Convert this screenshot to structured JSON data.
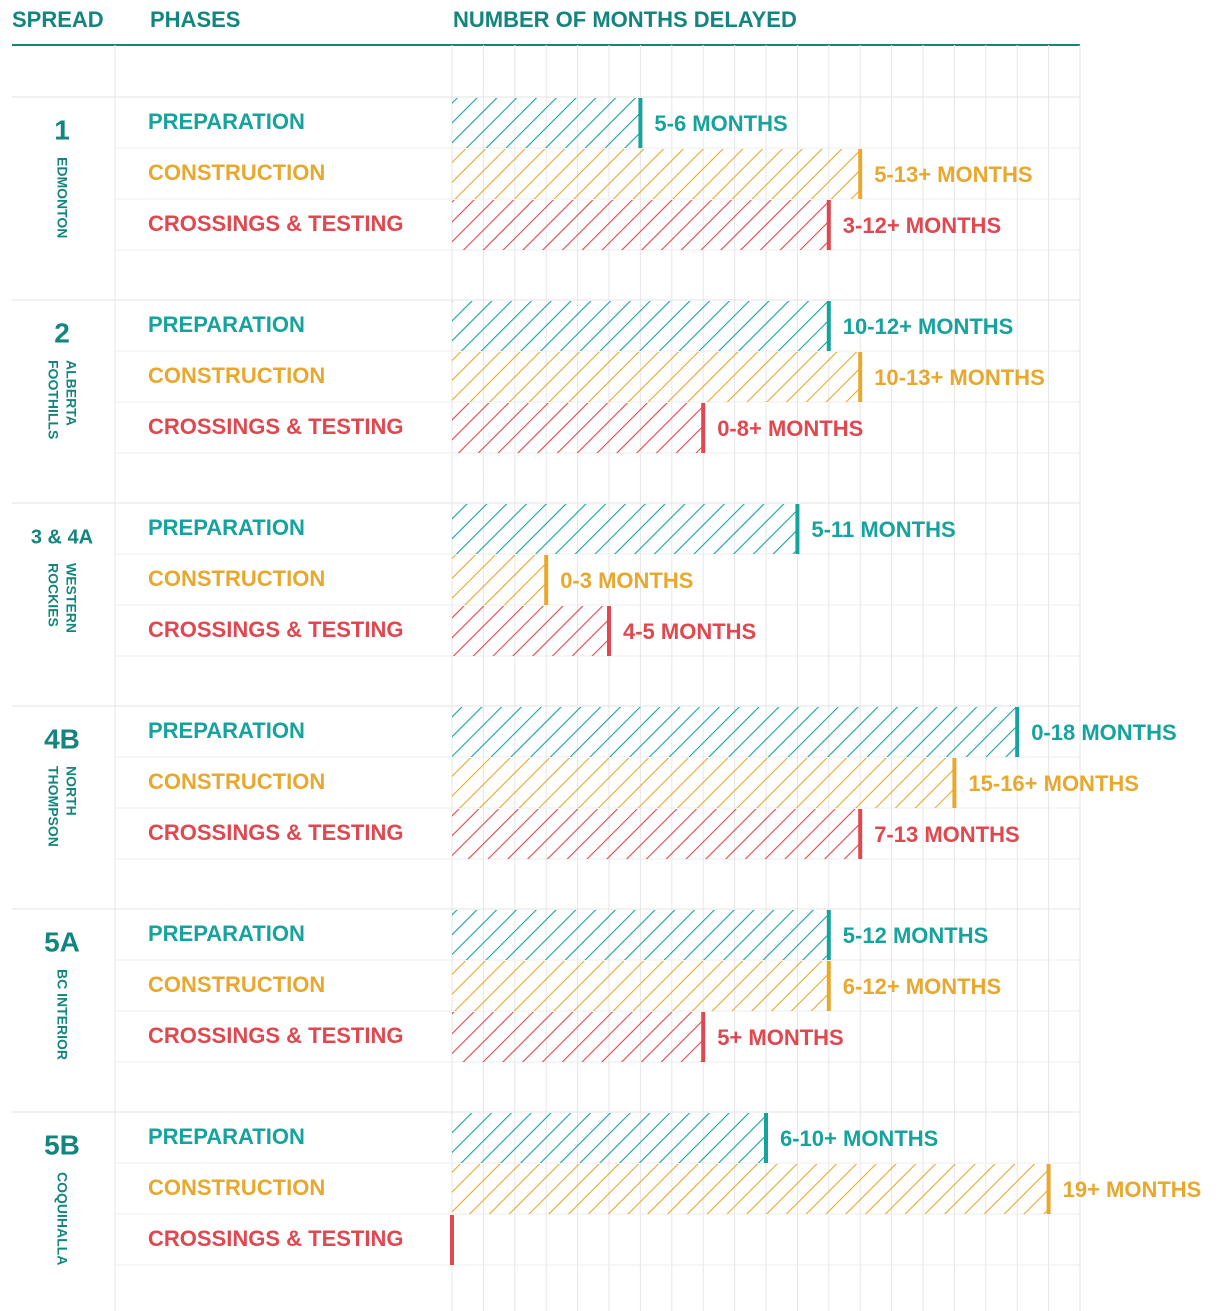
{
  "chart_data": {
    "type": "bar",
    "headers": [
      "SPREAD",
      "PHASES",
      "NUMBER OF MONTHS DELAYED"
    ],
    "categories": [
      "1",
      "2",
      "3 & 4A",
      "4B",
      "5A",
      "5B"
    ],
    "regions": [
      [
        "EDMONTON"
      ],
      [
        "ALBERTA",
        "FOOTHILLS"
      ],
      [
        "WESTERN",
        "ROCKIES"
      ],
      [
        "NORTH",
        "THOMPSON"
      ],
      [
        "BC INTERIOR"
      ],
      [
        "COQUIHALLA"
      ]
    ],
    "series": [
      {
        "name": "PREPARATION",
        "color": "#17a39d",
        "values": [
          6,
          12,
          11,
          18,
          12,
          10
        ],
        "value_labels": [
          "5-6 MONTHS",
          "10-12+ MONTHS",
          "5-11 MONTHS",
          "0-18 MONTHS",
          "5-12 MONTHS",
          "6-10+ MONTHS"
        ]
      },
      {
        "name": "CONSTRUCTION",
        "color": "#e8a82e",
        "values": [
          13,
          13,
          3,
          16,
          12,
          19
        ],
        "value_labels": [
          "5-13+ MONTHS",
          "10-13+ MONTHS",
          "0-3 MONTHS",
          "15-16+ MONTHS",
          "6-12+ MONTHS",
          "19+ MONTHS"
        ]
      },
      {
        "name": "CROSSINGS & TESTING",
        "color": "#e0474f",
        "values": [
          12,
          8,
          5,
          13,
          8,
          0
        ],
        "value_labels": [
          "3-12+ MONTHS",
          "0-8+ MONTHS",
          "4-5 MONTHS",
          "7-13 MONTHS",
          "5+ MONTHS",
          null
        ]
      }
    ],
    "xlim": [
      0,
      20
    ],
    "xticks": [
      0,
      1,
      2,
      3,
      4,
      5,
      6,
      7,
      8,
      9,
      10,
      11,
      12,
      13,
      14,
      15,
      16,
      17,
      18,
      19,
      20
    ],
    "grid": true
  }
}
